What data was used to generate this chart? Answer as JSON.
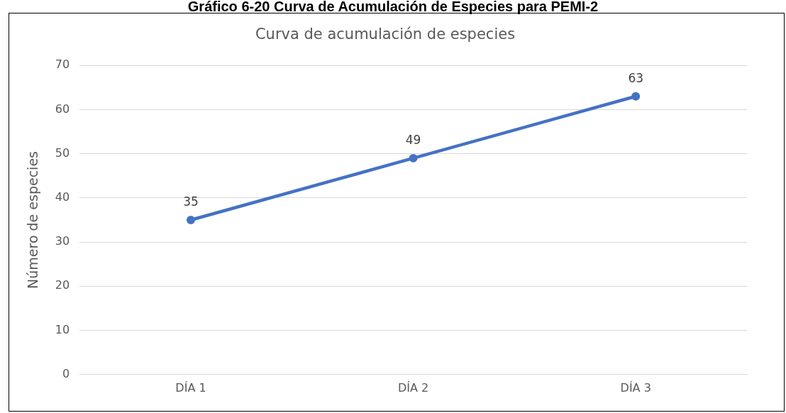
{
  "chart_data": {
    "type": "line",
    "title": "Gráfico 6-20 Curva de Acumulación de Especies para PEMI-2",
    "subtitle": "Curva de acumulación de especies",
    "ylabel": "Número de especies",
    "categories": [
      "DÍA 1",
      "DÍA 2",
      "DÍA 3"
    ],
    "series": [
      {
        "color": "#4472c4",
        "values": [
          35,
          49,
          63
        ]
      }
    ],
    "ylim": [
      0,
      70
    ],
    "yticks": [
      0,
      10,
      20,
      30,
      40,
      50,
      60,
      70
    ],
    "grid": "y",
    "legend": false,
    "marker": "circle",
    "line_style": "solid",
    "data_labels": true
  }
}
